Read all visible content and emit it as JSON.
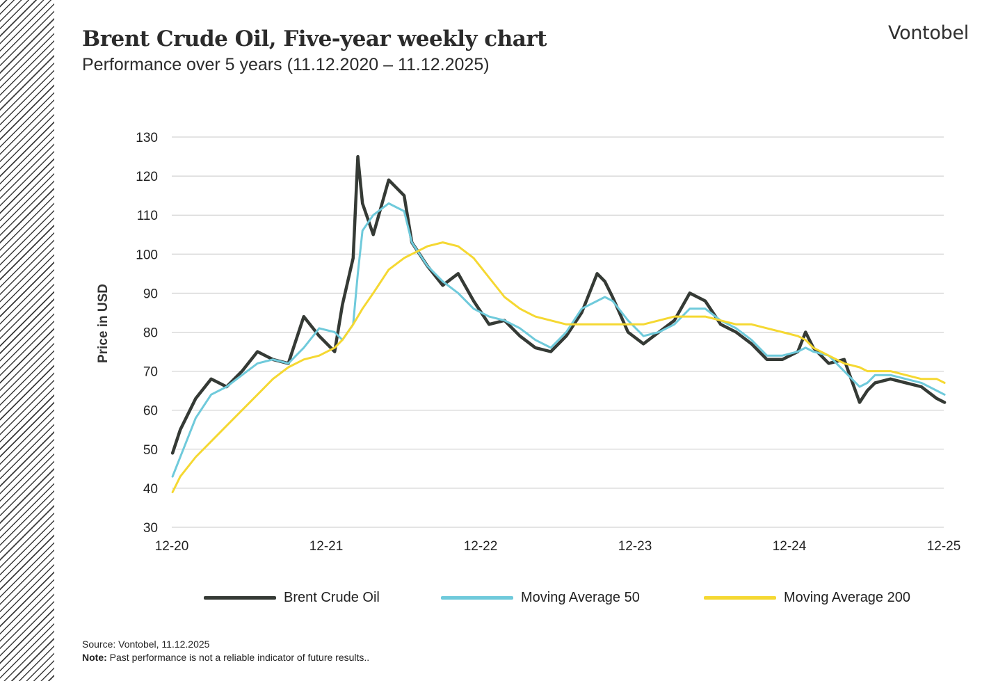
{
  "brand": "Vontobel",
  "title": "Brent Crude Oil, Five-year weekly chart",
  "subtitle": "Performance over 5 years (11.12.2020 – 11.12.2025)",
  "source": "Source: Vontobel, 11.12.2025",
  "note_label": "Note:",
  "note_text": " Past performance is not a reliable indicator of future results..",
  "colors": {
    "brent": "#353a35",
    "ma50": "#6fcadb",
    "ma200": "#f5d832",
    "grid": "#c8c8c8",
    "hatch": "#3a3a3a"
  },
  "chart_data": {
    "type": "line",
    "ylabel": "Price in USD",
    "xlabel": "",
    "ylim": [
      30,
      130
    ],
    "yticks": [
      30,
      40,
      50,
      60,
      70,
      80,
      90,
      100,
      110,
      120,
      130
    ],
    "x_ticks": [
      "12-20",
      "12-21",
      "12-22",
      "12-23",
      "12-24",
      "12-25"
    ],
    "grid": "horizontal",
    "legend_position": "bottom",
    "x": [
      2020.95,
      2021.0,
      2021.1,
      2021.2,
      2021.3,
      2021.4,
      2021.5,
      2021.6,
      2021.7,
      2021.8,
      2021.9,
      2022.0,
      2022.05,
      2022.12,
      2022.15,
      2022.18,
      2022.25,
      2022.35,
      2022.45,
      2022.5,
      2022.6,
      2022.7,
      2022.8,
      2022.9,
      2023.0,
      2023.1,
      2023.2,
      2023.3,
      2023.4,
      2023.5,
      2023.6,
      2023.7,
      2023.75,
      2023.8,
      2023.9,
      2024.0,
      2024.1,
      2024.2,
      2024.3,
      2024.4,
      2024.5,
      2024.6,
      2024.7,
      2024.8,
      2024.9,
      2025.0,
      2025.05,
      2025.1,
      2025.2,
      2025.3,
      2025.4,
      2025.45,
      2025.5,
      2025.6,
      2025.7,
      2025.8,
      2025.9,
      2025.95
    ],
    "series": [
      {
        "name": "Brent Crude Oil",
        "values": [
          49,
          55,
          63,
          68,
          66,
          70,
          75,
          73,
          72,
          84,
          79,
          75,
          87,
          99,
          125,
          113,
          105,
          119,
          115,
          103,
          97,
          92,
          95,
          88,
          82,
          83,
          79,
          76,
          75,
          79,
          85,
          95,
          93,
          89,
          80,
          77,
          80,
          83,
          90,
          88,
          82,
          80,
          77,
          73,
          73,
          75,
          80,
          76,
          72,
          73,
          62,
          65,
          67,
          68,
          67,
          66,
          63,
          62
        ]
      },
      {
        "name": "Moving Average 50",
        "values": [
          43,
          48,
          58,
          64,
          66,
          69,
          72,
          73,
          72,
          76,
          81,
          80,
          78,
          82,
          95,
          106,
          110,
          113,
          111,
          103,
          97,
          93,
          90,
          86,
          84,
          83,
          81,
          78,
          76,
          80,
          86,
          88,
          89,
          88,
          83,
          79,
          80,
          82,
          86,
          86,
          83,
          81,
          78,
          74,
          74,
          75,
          76,
          75,
          74,
          70,
          66,
          67,
          69,
          69,
          68,
          67,
          65,
          64
        ]
      },
      {
        "name": "Moving Average 200",
        "values": [
          39,
          43,
          48,
          52,
          56,
          60,
          64,
          68,
          71,
          73,
          74,
          76,
          78,
          82,
          84,
          86,
          90,
          96,
          99,
          100,
          102,
          103,
          102,
          99,
          94,
          89,
          86,
          84,
          83,
          82,
          82,
          82,
          82,
          82,
          82,
          82,
          83,
          84,
          84,
          84,
          83,
          82,
          82,
          81,
          80,
          79,
          78,
          76,
          74,
          72,
          71,
          70,
          70,
          70,
          69,
          68,
          68,
          67
        ]
      }
    ]
  }
}
